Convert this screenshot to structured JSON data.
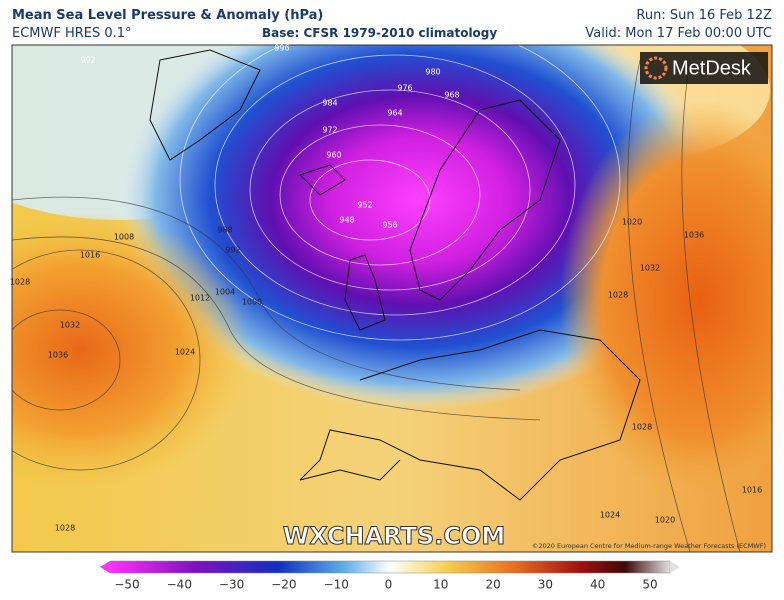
{
  "header": {
    "title": "Mean Sea Level Pressure & Anomaly (hPa)",
    "model": "ECMWF HRES 0.1°",
    "base": "Base: CFSR 1979-2010 climatology",
    "run": "Run: Sun 16 Feb 12Z",
    "valid": "Valid: Mon 17 Feb 00:00 UTC"
  },
  "map": {
    "logo": "MetDesk",
    "watermark": "WXCHARTS.COM",
    "credit": "©2020 European Centre for Medium-range Weather Forecasts (ECMWF)",
    "contour_labels": [
      "992",
      "996",
      "984",
      "980",
      "976",
      "968",
      "972",
      "964",
      "960",
      "952",
      "948",
      "956",
      "988",
      "992",
      "1004",
      "1000",
      "1008",
      "1016",
      "1012",
      "1024",
      "1028",
      "1032",
      "1036",
      "1020",
      "1036",
      "1032",
      "1028",
      "1028",
      "1016",
      "1020",
      "1024",
      "1028"
    ]
  },
  "colorbar": {
    "ticks": [
      "−50",
      "−40",
      "−30",
      "−20",
      "−10",
      "0",
      "10",
      "20",
      "30",
      "40",
      "50"
    ]
  }
}
